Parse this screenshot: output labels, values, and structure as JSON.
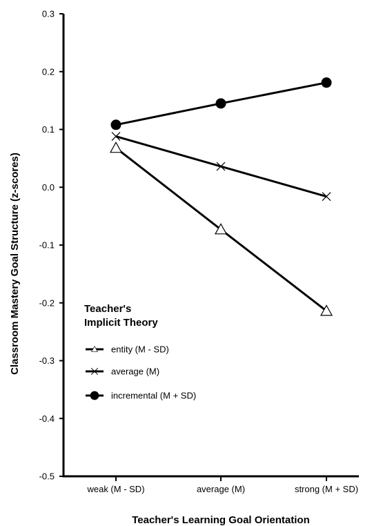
{
  "chart_data": {
    "type": "line",
    "xlabel": "Teacher's Learning Goal Orientation",
    "ylabel": "Classroom Mastery Goal Structure (z-scores)",
    "categories": [
      "weak (M - SD)",
      "average (M)",
      "strong (M + SD)"
    ],
    "ylim": [
      -0.5,
      0.3
    ],
    "yticks": [
      "0.3",
      "0.2",
      "0.1",
      "0.0",
      "-0.1",
      "-0.2",
      "-0.3",
      "-0.4",
      "-0.5"
    ],
    "grid": false,
    "legend": {
      "title_line1": "Teacher's",
      "title_line2": "Implicit Theory",
      "placement": "bottom-left"
    },
    "series": [
      {
        "name": "entity (M - SD)",
        "marker": "triangle-open",
        "values": [
          0.068,
          -0.073,
          -0.214
        ]
      },
      {
        "name": "average (M)",
        "marker": "x",
        "values": [
          0.088,
          0.036,
          -0.016
        ]
      },
      {
        "name": "incremental (M + SD)",
        "marker": "circle-filled",
        "values": [
          0.108,
          0.145,
          0.181
        ]
      }
    ]
  }
}
